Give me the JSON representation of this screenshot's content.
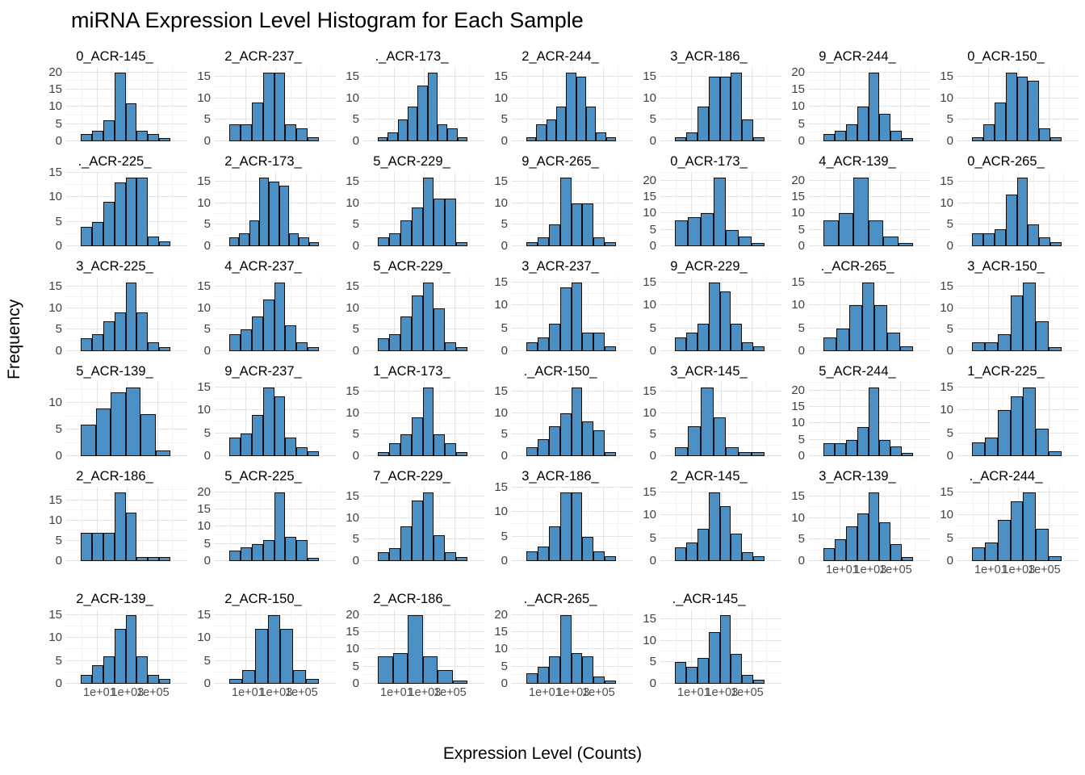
{
  "title": "miRNA Expression Level Histogram for Each Sample",
  "axis": {
    "x_label": "Expression Level (Counts)",
    "y_label": "Frequency"
  },
  "style": {
    "bar_fill": "#4a90c4",
    "bar_stroke": "#0f0f0f",
    "grid_major": "#e4e4e4",
    "grid_minor": "#f3f3f3",
    "tick_text": "#4d4d4d"
  },
  "x_tick_labels": [
    "1e+01",
    "1e+03",
    "1e+05"
  ],
  "chart_data": {
    "type": "bar",
    "subtype": "faceted-histogram",
    "title": "miRNA Expression Level Histogram for Each Sample",
    "xlabel": "Expression Level (Counts)",
    "ylabel": "Frequency",
    "x_scale": "log10",
    "x_tick_labels": [
      "1e+01",
      "1e+03",
      "1e+05"
    ],
    "columns": 7,
    "facets": [
      {
        "label": "0_ACR-145_",
        "yticks": [
          0,
          5,
          10,
          15,
          20
        ],
        "values": [
          2,
          3,
          6,
          20,
          11,
          3,
          2,
          1
        ],
        "show_x_ticks": false
      },
      {
        "label": "2_ACR-237_",
        "yticks": [
          0,
          5,
          10,
          15
        ],
        "values": [
          4,
          4,
          9,
          16,
          16,
          4,
          3,
          1
        ],
        "show_x_ticks": false
      },
      {
        "label": "._ACR-173_",
        "yticks": [
          0,
          5,
          10,
          15
        ],
        "values": [
          1,
          2,
          5,
          8,
          13,
          16,
          4,
          3,
          1
        ],
        "show_x_ticks": false
      },
      {
        "label": "2_ACR-244_",
        "yticks": [
          0,
          5,
          10,
          15
        ],
        "values": [
          1,
          4,
          5,
          8,
          16,
          15,
          8,
          2,
          1
        ],
        "show_x_ticks": false
      },
      {
        "label": "3_ACR-186_",
        "yticks": [
          0,
          5,
          10,
          15
        ],
        "values": [
          1,
          2,
          8,
          15,
          15,
          16,
          5,
          1
        ],
        "show_x_ticks": false
      },
      {
        "label": "9_ACR-244_",
        "yticks": [
          0,
          5,
          10,
          15,
          20
        ],
        "values": [
          2,
          3,
          5,
          10,
          20,
          8,
          3,
          1
        ],
        "show_x_ticks": false
      },
      {
        "label": "0_ACR-150_",
        "yticks": [
          0,
          5,
          10,
          15
        ],
        "values": [
          1,
          4,
          9,
          16,
          15,
          14,
          3,
          1
        ],
        "show_x_ticks": false
      },
      {
        "label": "._ACR-225_",
        "yticks": [
          0,
          5,
          10,
          15
        ],
        "values": [
          4,
          5,
          9,
          13,
          14,
          14,
          2,
          1
        ],
        "show_x_ticks": false
      },
      {
        "label": "2_ACR-173_",
        "yticks": [
          0,
          5,
          10,
          15
        ],
        "values": [
          2,
          3,
          6,
          16,
          15,
          14,
          3,
          2,
          1
        ],
        "show_x_ticks": false
      },
      {
        "label": "5_ACR-229_",
        "yticks": [
          0,
          5,
          10,
          15
        ],
        "values": [
          2,
          3,
          6,
          9,
          16,
          11,
          11,
          1
        ],
        "show_x_ticks": false
      },
      {
        "label": "9_ACR-265_",
        "yticks": [
          0,
          5,
          10,
          15
        ],
        "values": [
          1,
          2,
          5,
          16,
          10,
          10,
          2,
          1
        ],
        "show_x_ticks": false
      },
      {
        "label": "0_ACR-173_",
        "yticks": [
          0,
          5,
          10,
          15,
          20
        ],
        "values": [
          8,
          9,
          10,
          21,
          5,
          3,
          1
        ],
        "show_x_ticks": false
      },
      {
        "label": "4_ACR-139_",
        "yticks": [
          0,
          5,
          10,
          15,
          20
        ],
        "values": [
          8,
          10,
          21,
          8,
          3,
          1
        ],
        "show_x_ticks": false
      },
      {
        "label": "0_ACR-265_",
        "yticks": [
          0,
          5,
          10,
          15
        ],
        "values": [
          3,
          3,
          4,
          12,
          16,
          5,
          2,
          1
        ],
        "show_x_ticks": false
      },
      {
        "label": "3_ACR-225_",
        "yticks": [
          0,
          5,
          10,
          15
        ],
        "values": [
          3,
          4,
          7,
          9,
          16,
          9,
          2,
          1
        ],
        "show_x_ticks": false
      },
      {
        "label": "4_ACR-237_",
        "yticks": [
          0,
          5,
          10,
          15
        ],
        "values": [
          4,
          5,
          8,
          12,
          16,
          6,
          2,
          1
        ],
        "show_x_ticks": false
      },
      {
        "label": "5_ACR-229_",
        "yticks": [
          0,
          5,
          10,
          15
        ],
        "values": [
          3,
          4,
          8,
          13,
          16,
          10,
          2,
          1
        ],
        "show_x_ticks": false
      },
      {
        "label": "3_ACR-237_",
        "yticks": [
          0,
          5,
          10,
          15
        ],
        "values": [
          2,
          3,
          6,
          14,
          15,
          4,
          4,
          1
        ],
        "show_x_ticks": false
      },
      {
        "label": "9_ACR-229_",
        "yticks": [
          0,
          5,
          10,
          15
        ],
        "values": [
          3,
          4,
          6,
          15,
          13,
          6,
          2,
          1
        ],
        "show_x_ticks": false
      },
      {
        "label": "._ACR-265_",
        "yticks": [
          0,
          5,
          10,
          15
        ],
        "values": [
          3,
          5,
          10,
          15,
          10,
          4,
          1
        ],
        "show_x_ticks": false
      },
      {
        "label": "3_ACR-150_",
        "yticks": [
          0,
          5,
          10,
          15
        ],
        "values": [
          2,
          2,
          4,
          13,
          16,
          7,
          1
        ],
        "show_x_ticks": false
      },
      {
        "label": "5_ACR-139_",
        "yticks": [
          0,
          5,
          10
        ],
        "values": [
          6,
          9,
          12,
          13,
          8,
          1
        ],
        "show_x_ticks": false
      },
      {
        "label": "9_ACR-237_",
        "yticks": [
          0,
          5,
          10,
          15
        ],
        "values": [
          4,
          5,
          9,
          15,
          13,
          4,
          2,
          1
        ],
        "show_x_ticks": false
      },
      {
        "label": "1_ACR-173_",
        "yticks": [
          0,
          5,
          10,
          15
        ],
        "values": [
          1,
          3,
          5,
          9,
          16,
          5,
          3,
          1
        ],
        "show_x_ticks": false
      },
      {
        "label": "._ACR-150_",
        "yticks": [
          0,
          5,
          10,
          15
        ],
        "values": [
          2,
          4,
          7,
          10,
          16,
          8,
          6,
          1
        ],
        "show_x_ticks": false
      },
      {
        "label": "3_ACR-145_",
        "yticks": [
          0,
          5,
          10,
          15
        ],
        "values": [
          2,
          7,
          16,
          9,
          2,
          1,
          1
        ],
        "show_x_ticks": false
      },
      {
        "label": "5_ACR-244_",
        "yticks": [
          0,
          5,
          10,
          15,
          20
        ],
        "values": [
          4,
          4,
          5,
          9,
          21,
          5,
          3,
          1
        ],
        "show_x_ticks": false
      },
      {
        "label": "1_ACR-225_",
        "yticks": [
          0,
          5,
          10,
          15
        ],
        "values": [
          3,
          4,
          10,
          13,
          15,
          6,
          1
        ],
        "show_x_ticks": false
      },
      {
        "label": "2_ACR-186_",
        "yticks": [
          0,
          5,
          10,
          15
        ],
        "values": [
          7,
          7,
          7,
          17,
          12,
          1,
          1,
          1
        ],
        "show_x_ticks": false
      },
      {
        "label": "5_ACR-225_",
        "yticks": [
          0,
          5,
          10,
          15,
          20
        ],
        "values": [
          3,
          4,
          5,
          6,
          20,
          7,
          6,
          1
        ],
        "show_x_ticks": false
      },
      {
        "label": "7_ACR-229_",
        "yticks": [
          0,
          5,
          10,
          15
        ],
        "values": [
          2,
          3,
          8,
          14,
          16,
          6,
          2,
          1
        ],
        "show_x_ticks": false
      },
      {
        "label": "3_ACR-186_",
        "yticks": [
          0,
          5,
          10,
          15
        ],
        "values": [
          2,
          3,
          7,
          14,
          14,
          5,
          2,
          1
        ],
        "show_x_ticks": false
      },
      {
        "label": "2_ACR-145_",
        "yticks": [
          0,
          5,
          10,
          15
        ],
        "values": [
          3,
          4,
          7,
          15,
          12,
          6,
          2,
          1
        ],
        "show_x_ticks": false
      },
      {
        "label": "3_ACR-139_",
        "yticks": [
          0,
          5,
          10,
          15
        ],
        "values": [
          3,
          5,
          8,
          11,
          16,
          9,
          4,
          1
        ],
        "show_x_ticks": true
      },
      {
        "label": "._ACR-244_",
        "yticks": [
          0,
          5,
          10,
          15
        ],
        "values": [
          3,
          4,
          9,
          13,
          15,
          7,
          1
        ],
        "show_x_ticks": true
      },
      {
        "label": "2_ACR-139_",
        "yticks": [
          0,
          5,
          10,
          15
        ],
        "values": [
          2,
          4,
          6,
          12,
          15,
          6,
          2,
          1
        ],
        "show_x_ticks": true
      },
      {
        "label": "2_ACR-150_",
        "yticks": [
          0,
          5,
          10,
          15
        ],
        "values": [
          1,
          3,
          12,
          15,
          12,
          3,
          1
        ],
        "show_x_ticks": true
      },
      {
        "label": "2_ACR-186_",
        "yticks": [
          0,
          5,
          10,
          15,
          20
        ],
        "values": [
          8,
          9,
          20,
          8,
          4,
          1
        ],
        "show_x_ticks": true
      },
      {
        "label": "._ACR-265_",
        "yticks": [
          0,
          5,
          10,
          15,
          20
        ],
        "values": [
          3,
          5,
          8,
          20,
          9,
          8,
          2,
          1
        ],
        "show_x_ticks": true
      },
      {
        "label": "._ACR-145_",
        "yticks": [
          0,
          5,
          10,
          15
        ],
        "values": [
          5,
          4,
          6,
          12,
          16,
          7,
          2,
          1
        ],
        "show_x_ticks": true
      }
    ]
  }
}
